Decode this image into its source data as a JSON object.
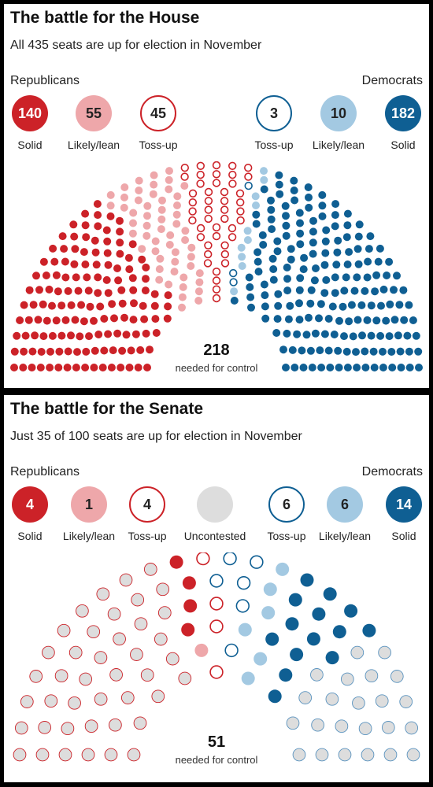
{
  "house": {
    "title": "The battle for the House",
    "subtitle": "All 435 seats are up for election in November",
    "rep_label": "Republicans",
    "dem_label": "Democrats",
    "badges": [
      {
        "value": "140",
        "label": "Solid",
        "color": "#cc2228",
        "style": "filled-dark"
      },
      {
        "value": "55",
        "label": "Likely/lean",
        "color": "#eea7aa",
        "style": "filled-light"
      },
      {
        "value": "45",
        "label": "Toss-up",
        "color": "#cc2228",
        "style": "outline"
      },
      {
        "value": "3",
        "label": "Toss-up",
        "color": "#0f5f93",
        "style": "outline"
      },
      {
        "value": "10",
        "label": "Likely/lean",
        "color": "#a3c9e2",
        "style": "filled-light"
      },
      {
        "value": "182",
        "label": "Solid",
        "color": "#0f5f93",
        "style": "filled-dark"
      }
    ],
    "control_number": "218",
    "control_text": "needed for control"
  },
  "senate": {
    "title": "The battle for the Senate",
    "subtitle": "Just 35 of 100 seats are up for election in November",
    "rep_label": "Republicans",
    "dem_label": "Democrats",
    "badges": [
      {
        "value": "4",
        "label": "Solid",
        "color": "#cc2228",
        "style": "filled-dark"
      },
      {
        "value": "1",
        "label": "Likely/lean",
        "color": "#eea7aa",
        "style": "filled-light"
      },
      {
        "value": "4",
        "label": "Toss-up",
        "color": "#cc2228",
        "style": "outline"
      },
      {
        "value": "",
        "label": "Uncontested",
        "color": "#dddddd",
        "style": "filled-grey"
      },
      {
        "value": "6",
        "label": "Toss-up",
        "color": "#0f5f93",
        "style": "outline"
      },
      {
        "value": "6",
        "label": "Likely/lean",
        "color": "#a3c9e2",
        "style": "filled-light"
      },
      {
        "value": "14",
        "label": "Solid",
        "color": "#0f5f93",
        "style": "filled-dark"
      }
    ],
    "control_number": "51",
    "control_text": "needed for control"
  },
  "chart_data": [
    {
      "type": "parliament",
      "title": "The battle for the House",
      "total_seats": 435,
      "majority": 218,
      "categories": [
        "Republican Solid",
        "Republican Likely/lean",
        "Republican Toss-up",
        "Democrat Toss-up",
        "Democrat Likely/lean",
        "Democrat Solid"
      ],
      "values": [
        140,
        55,
        45,
        3,
        10,
        182
      ],
      "colors": [
        "#cc2228",
        "#eea7aa",
        "#cc2228",
        "#0f5f93",
        "#a3c9e2",
        "#0f5f93"
      ],
      "outlined": [
        false,
        false,
        true,
        true,
        false,
        false
      ]
    },
    {
      "type": "parliament",
      "title": "The battle for the Senate",
      "total_seats": 100,
      "majority": 51,
      "categories": [
        "Republican not up",
        "Republican Solid",
        "Republican Likely/lean",
        "Republican Toss-up",
        "Democrat Toss-up",
        "Democrat Likely/lean",
        "Democrat Solid",
        "Democrat not up"
      ],
      "values": [
        42,
        4,
        1,
        4,
        6,
        6,
        14,
        23
      ],
      "colors": [
        "#cc2228",
        "#cc2228",
        "#eea7aa",
        "#cc2228",
        "#0f5f93",
        "#a3c9e2",
        "#0f5f93",
        "#5a93bf"
      ],
      "fills": [
        "#dddddd",
        "#cc2228",
        "#eea7aa",
        "#ffffff",
        "#ffffff",
        "#a3c9e2",
        "#0f5f93",
        "#dddddd"
      ],
      "outlined": [
        true,
        false,
        false,
        true,
        true,
        false,
        false,
        true
      ]
    }
  ]
}
